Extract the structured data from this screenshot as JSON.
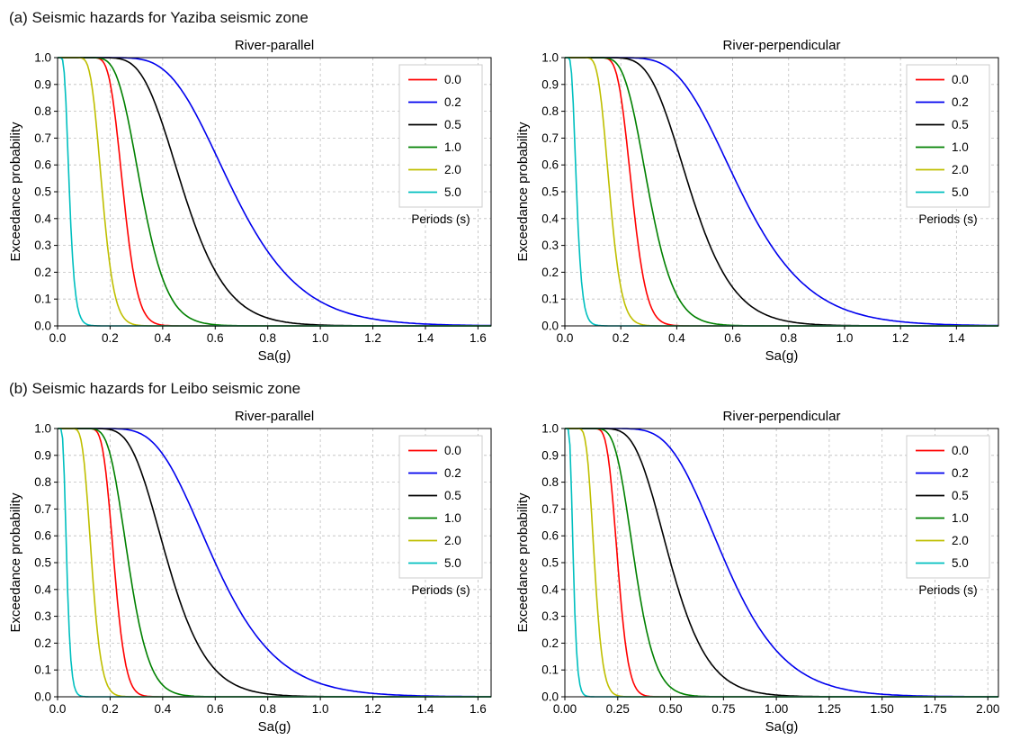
{
  "page": {
    "section_a_title": "(a) Seismic hazards for Yaziba seismic zone",
    "section_b_title": "(b) Seismic hazards for Leibo seismic zone"
  },
  "palette": {
    "red": "#ff0000",
    "blue": "#0000ee",
    "black": "#000000",
    "green": "#008000",
    "yellow": "#bfbf00",
    "cyan": "#00bfbf",
    "grid": "#bdbdbd",
    "legend_border": "#cccccc"
  },
  "legend": {
    "title": "Periods (s)",
    "entries": [
      {
        "label": "0.0",
        "color": "red"
      },
      {
        "label": "0.2",
        "color": "blue"
      },
      {
        "label": "0.5",
        "color": "black"
      },
      {
        "label": "1.0",
        "color": "green"
      },
      {
        "label": "2.0",
        "color": "yellow"
      },
      {
        "label": "5.0",
        "color": "cyan"
      }
    ]
  },
  "chart_data": [
    {
      "type": "line",
      "zone": "Yaziba",
      "title": "River-parallel",
      "xlabel": "Sa(g)",
      "ylabel": "Exceedance probability",
      "xlim": [
        0,
        1.65
      ],
      "ylim": [
        0,
        1.0
      ],
      "xticks": [
        0.0,
        0.2,
        0.4,
        0.6,
        0.8,
        1.0,
        1.2,
        1.4,
        1.6
      ],
      "xtick_decimals": 1,
      "yticks": [
        0.0,
        0.1,
        0.2,
        0.3,
        0.4,
        0.5,
        0.6,
        0.7,
        0.8,
        0.9,
        1.0
      ],
      "grid": true,
      "legend_position": "upper right",
      "curve_model": "lognormal_survival",
      "series": [
        {
          "name": "0.0",
          "period_s": 0.0,
          "color": "red",
          "median_g": 0.25,
          "beta": 0.17
        },
        {
          "name": "0.2",
          "period_s": 0.2,
          "color": "blue",
          "median_g": 0.67,
          "beta": 0.3
        },
        {
          "name": "0.5",
          "period_s": 0.5,
          "color": "black",
          "median_g": 0.48,
          "beta": 0.27
        },
        {
          "name": "1.0",
          "period_s": 1.0,
          "color": "green",
          "median_g": 0.32,
          "beta": 0.24
        },
        {
          "name": "2.0",
          "period_s": 2.0,
          "color": "yellow",
          "median_g": 0.17,
          "beta": 0.21
        },
        {
          "name": "5.0",
          "period_s": 5.0,
          "color": "cyan",
          "median_g": 0.045,
          "beta": 0.36
        }
      ]
    },
    {
      "type": "line",
      "zone": "Yaziba",
      "title": "River-perpendicular",
      "xlabel": "Sa(g)",
      "ylabel": "Exceedance probability",
      "xlim": [
        0,
        1.55
      ],
      "ylim": [
        0,
        1.0
      ],
      "xticks": [
        0.0,
        0.2,
        0.4,
        0.6,
        0.8,
        1.0,
        1.2,
        1.4
      ],
      "xtick_decimals": 1,
      "yticks": [
        0.0,
        0.1,
        0.2,
        0.3,
        0.4,
        0.5,
        0.6,
        0.7,
        0.8,
        0.9,
        1.0
      ],
      "grid": true,
      "legend_position": "upper right",
      "curve_model": "lognormal_survival",
      "series": [
        {
          "name": "0.0",
          "period_s": 0.0,
          "color": "red",
          "median_g": 0.24,
          "beta": 0.17
        },
        {
          "name": "0.2",
          "period_s": 0.2,
          "color": "blue",
          "median_g": 0.63,
          "beta": 0.3
        },
        {
          "name": "0.5",
          "period_s": 0.5,
          "color": "black",
          "median_g": 0.45,
          "beta": 0.27
        },
        {
          "name": "1.0",
          "period_s": 1.0,
          "color": "green",
          "median_g": 0.3,
          "beta": 0.24
        },
        {
          "name": "2.0",
          "period_s": 2.0,
          "color": "yellow",
          "median_g": 0.16,
          "beta": 0.21
        },
        {
          "name": "5.0",
          "period_s": 5.0,
          "color": "cyan",
          "median_g": 0.042,
          "beta": 0.36
        }
      ]
    },
    {
      "type": "line",
      "zone": "Leibo",
      "title": "River-parallel",
      "xlabel": "Sa(g)",
      "ylabel": "Exceedance probability",
      "xlim": [
        0,
        1.65
      ],
      "ylim": [
        0,
        1.0
      ],
      "xticks": [
        0.0,
        0.2,
        0.4,
        0.6,
        0.8,
        1.0,
        1.2,
        1.4,
        1.6
      ],
      "xtick_decimals": 1,
      "yticks": [
        0.0,
        0.1,
        0.2,
        0.3,
        0.4,
        0.5,
        0.6,
        0.7,
        0.8,
        0.9,
        1.0
      ],
      "grid": true,
      "legend_position": "upper right",
      "curve_model": "lognormal_survival",
      "series": [
        {
          "name": "0.0",
          "period_s": 0.0,
          "color": "red",
          "median_g": 0.215,
          "beta": 0.16
        },
        {
          "name": "0.2",
          "period_s": 0.2,
          "color": "blue",
          "median_g": 0.6,
          "beta": 0.31
        },
        {
          "name": "0.5",
          "period_s": 0.5,
          "color": "black",
          "median_g": 0.42,
          "beta": 0.28
        },
        {
          "name": "1.0",
          "period_s": 1.0,
          "color": "green",
          "median_g": 0.27,
          "beta": 0.23
        },
        {
          "name": "2.0",
          "period_s": 2.0,
          "color": "yellow",
          "median_g": 0.13,
          "beta": 0.22
        },
        {
          "name": "5.0",
          "period_s": 5.0,
          "color": "cyan",
          "median_g": 0.035,
          "beta": 0.34
        }
      ]
    },
    {
      "type": "line",
      "zone": "Leibo",
      "title": "River-perpendicular",
      "xlabel": "Sa(g)",
      "ylabel": "Exceedance probability",
      "xlim": [
        0,
        2.05
      ],
      "ylim": [
        0,
        1.0
      ],
      "xticks": [
        0.0,
        0.25,
        0.5,
        0.75,
        1.0,
        1.25,
        1.5,
        1.75,
        2.0
      ],
      "xtick_decimals": 2,
      "yticks": [
        0.0,
        0.1,
        0.2,
        0.3,
        0.4,
        0.5,
        0.6,
        0.7,
        0.8,
        0.9,
        1.0
      ],
      "grid": true,
      "legend_position": "upper right",
      "curve_model": "lognormal_survival",
      "series": [
        {
          "name": "0.0",
          "period_s": 0.0,
          "color": "red",
          "median_g": 0.25,
          "beta": 0.16
        },
        {
          "name": "0.2",
          "period_s": 0.2,
          "color": "blue",
          "median_g": 0.76,
          "beta": 0.29
        },
        {
          "name": "0.5",
          "period_s": 0.5,
          "color": "black",
          "median_g": 0.5,
          "beta": 0.28
        },
        {
          "name": "1.0",
          "period_s": 1.0,
          "color": "green",
          "median_g": 0.33,
          "beta": 0.23
        },
        {
          "name": "2.0",
          "period_s": 2.0,
          "color": "yellow",
          "median_g": 0.14,
          "beta": 0.22
        },
        {
          "name": "5.0",
          "period_s": 5.0,
          "color": "cyan",
          "median_g": 0.04,
          "beta": 0.34
        }
      ]
    }
  ]
}
